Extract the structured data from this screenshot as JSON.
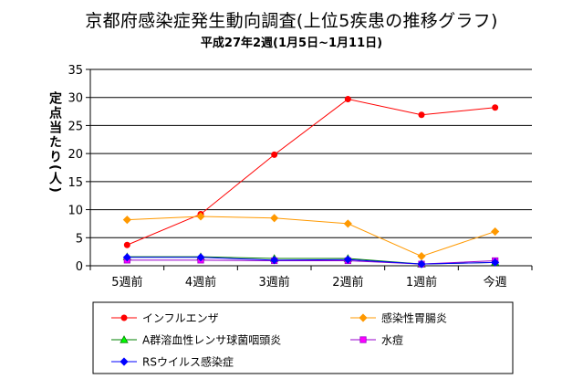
{
  "chart_data": {
    "type": "line",
    "title": "京都府感染症発生動向調査(上位5疾患の推移グラフ)",
    "subtitle": "平成27年2週(1月5日~1月11日)",
    "ylabel": "定点当たり(人)",
    "xlabel": "",
    "categories": [
      "5週前",
      "4週前",
      "3週前",
      "2週前",
      "1週前",
      "今週"
    ],
    "ylim": [
      0,
      35
    ],
    "yticks": [
      0,
      5,
      10,
      15,
      20,
      25,
      30,
      35
    ],
    "grid": true,
    "legend_position": "bottom",
    "series": [
      {
        "name": "インフルエンザ",
        "values": [
          3.7,
          9.2,
          19.8,
          29.7,
          26.9,
          28.2
        ],
        "color": "#ff0000",
        "marker": "circle",
        "marker_color": "#ff0000"
      },
      {
        "name": "感染性胃腸炎",
        "values": [
          8.2,
          8.8,
          8.5,
          7.5,
          1.7,
          6.1
        ],
        "color": "#ff9900",
        "marker": "diamond",
        "marker_color": "#ff9900"
      },
      {
        "name": "A群溶血性レンサ球菌咽頭炎",
        "values": [
          1.6,
          1.6,
          1.3,
          1.3,
          0.3,
          0.6
        ],
        "color": "#008000",
        "marker": "triangle",
        "marker_color": "#00ff00"
      },
      {
        "name": "水痘",
        "values": [
          1.0,
          1.0,
          0.9,
          0.9,
          0.3,
          0.9
        ],
        "color": "#9900cc",
        "marker": "square",
        "marker_color": "#ff00ff"
      },
      {
        "name": "RSウイルス感染症",
        "values": [
          1.5,
          1.5,
          1.0,
          1.1,
          0.3,
          0.6
        ],
        "color": "#0000ff",
        "marker": "diamond",
        "marker_color": "#0000ff"
      }
    ]
  }
}
